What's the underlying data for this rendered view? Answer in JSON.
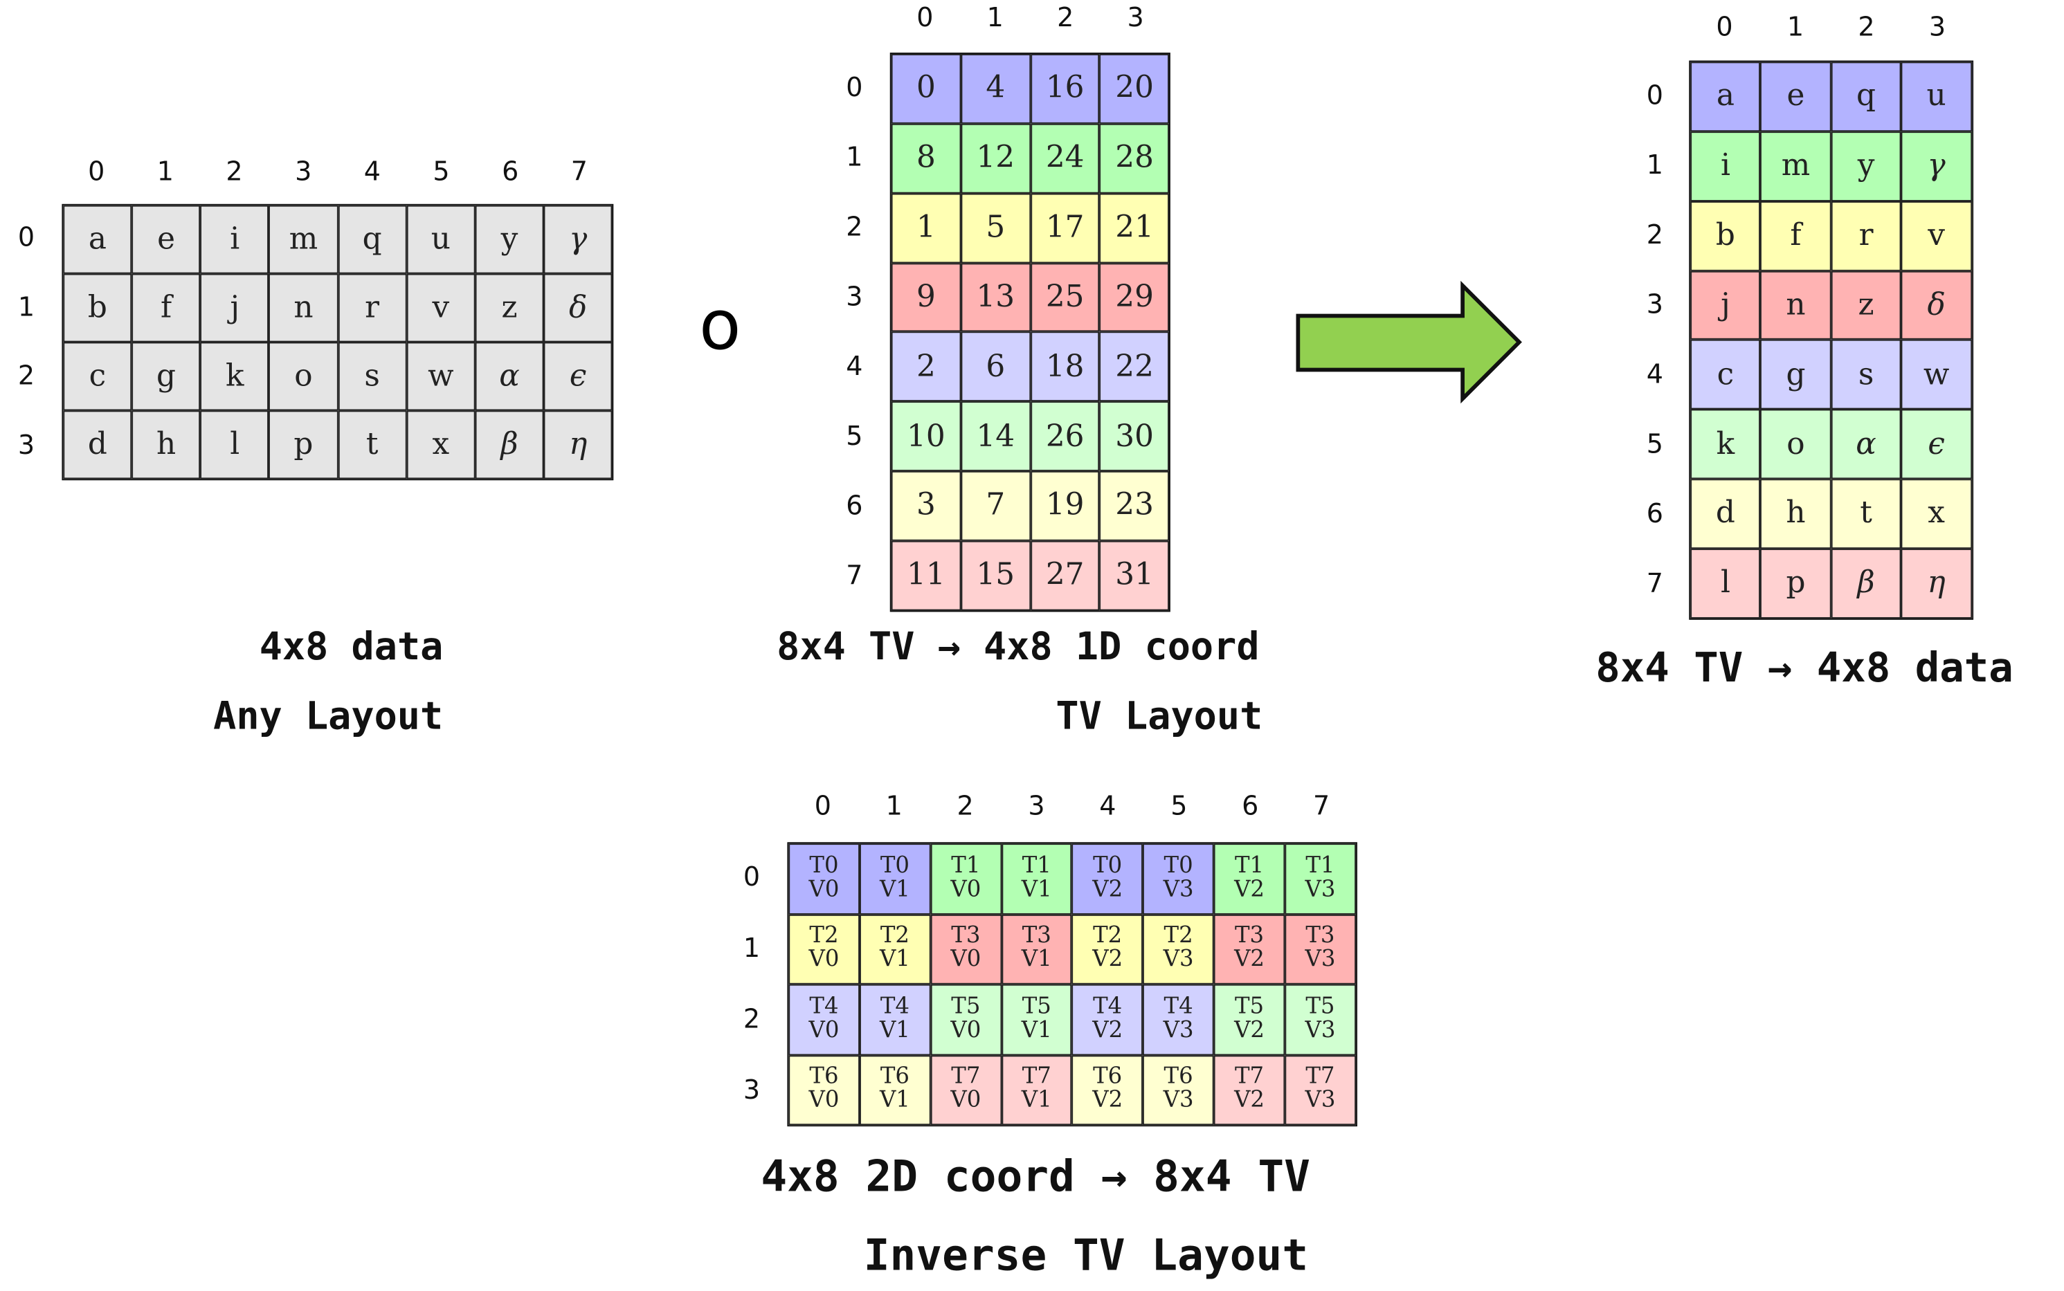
{
  "colors": {
    "T0": "#b3b3ff",
    "T1": "#b3ffb3",
    "T2": "#ffffb3",
    "T3": "#ffb3b3",
    "T4": "#d1d1ff",
    "T5": "#d1ffd1",
    "T6": "#ffffd1",
    "T7": "#ffd1d1",
    "grey": "#e5e5e5",
    "arrow": "#92d050"
  },
  "compose_symbol": "o",
  "tables": {
    "data": {
      "col_headers": [
        "0",
        "1",
        "2",
        "3",
        "4",
        "5",
        "6",
        "7"
      ],
      "row_headers": [
        "0",
        "1",
        "2",
        "3"
      ],
      "cells": [
        [
          "a",
          "e",
          "i",
          "m",
          "q",
          "u",
          "y",
          "γ"
        ],
        [
          "b",
          "f",
          "j",
          "n",
          "r",
          "v",
          "z",
          "δ"
        ],
        [
          "c",
          "g",
          "k",
          "o",
          "s",
          "w",
          "α",
          "ϵ"
        ],
        [
          "d",
          "h",
          "l",
          "p",
          "t",
          "x",
          "β",
          "η"
        ]
      ],
      "captions": [
        "4x8 data",
        "Any Layout"
      ]
    },
    "tv": {
      "col_headers": [
        "0",
        "1",
        "2",
        "3"
      ],
      "row_headers": [
        "0",
        "1",
        "2",
        "3",
        "4",
        "5",
        "6",
        "7"
      ],
      "cells": [
        [
          "0",
          "4",
          "16",
          "20"
        ],
        [
          "8",
          "12",
          "24",
          "28"
        ],
        [
          "1",
          "5",
          "17",
          "21"
        ],
        [
          "9",
          "13",
          "25",
          "29"
        ],
        [
          "2",
          "6",
          "18",
          "22"
        ],
        [
          "10",
          "14",
          "26",
          "30"
        ],
        [
          "3",
          "7",
          "19",
          "23"
        ],
        [
          "11",
          "15",
          "27",
          "31"
        ]
      ],
      "captions": [
        "8x4 TV → 4x8 1D coord",
        "TV Layout"
      ]
    },
    "result": {
      "col_headers": [
        "0",
        "1",
        "2",
        "3"
      ],
      "row_headers": [
        "0",
        "1",
        "2",
        "3",
        "4",
        "5",
        "6",
        "7"
      ],
      "cells": [
        [
          "a",
          "e",
          "q",
          "u"
        ],
        [
          "i",
          "m",
          "y",
          "γ"
        ],
        [
          "b",
          "f",
          "r",
          "v"
        ],
        [
          "j",
          "n",
          "z",
          "δ"
        ],
        [
          "c",
          "g",
          "s",
          "w"
        ],
        [
          "k",
          "o",
          "α",
          "ϵ"
        ],
        [
          "d",
          "h",
          "t",
          "x"
        ],
        [
          "l",
          "p",
          "β",
          "η"
        ]
      ],
      "captions": [
        "8x4 TV → 4x8 data"
      ]
    },
    "inverse": {
      "col_headers": [
        "0",
        "1",
        "2",
        "3",
        "4",
        "5",
        "6",
        "7"
      ],
      "row_headers": [
        "0",
        "1",
        "2",
        "3"
      ],
      "cells": [
        [
          [
            "T0",
            "V0"
          ],
          [
            "T0",
            "V1"
          ],
          [
            "T1",
            "V0"
          ],
          [
            "T1",
            "V1"
          ],
          [
            "T0",
            "V2"
          ],
          [
            "T0",
            "V3"
          ],
          [
            "T1",
            "V2"
          ],
          [
            "T1",
            "V3"
          ]
        ],
        [
          [
            "T2",
            "V0"
          ],
          [
            "T2",
            "V1"
          ],
          [
            "T3",
            "V0"
          ],
          [
            "T3",
            "V1"
          ],
          [
            "T2",
            "V2"
          ],
          [
            "T2",
            "V3"
          ],
          [
            "T3",
            "V2"
          ],
          [
            "T3",
            "V3"
          ]
        ],
        [
          [
            "T4",
            "V0"
          ],
          [
            "T4",
            "V1"
          ],
          [
            "T5",
            "V0"
          ],
          [
            "T5",
            "V1"
          ],
          [
            "T4",
            "V2"
          ],
          [
            "T4",
            "V3"
          ],
          [
            "T5",
            "V2"
          ],
          [
            "T5",
            "V3"
          ]
        ],
        [
          [
            "T6",
            "V0"
          ],
          [
            "T6",
            "V1"
          ],
          [
            "T7",
            "V0"
          ],
          [
            "T7",
            "V1"
          ],
          [
            "T6",
            "V2"
          ],
          [
            "T6",
            "V3"
          ],
          [
            "T7",
            "V2"
          ],
          [
            "T7",
            "V3"
          ]
        ]
      ],
      "captions": [
        "4x8 2D coord → 8x4 TV",
        "Inverse TV Layout"
      ]
    }
  }
}
